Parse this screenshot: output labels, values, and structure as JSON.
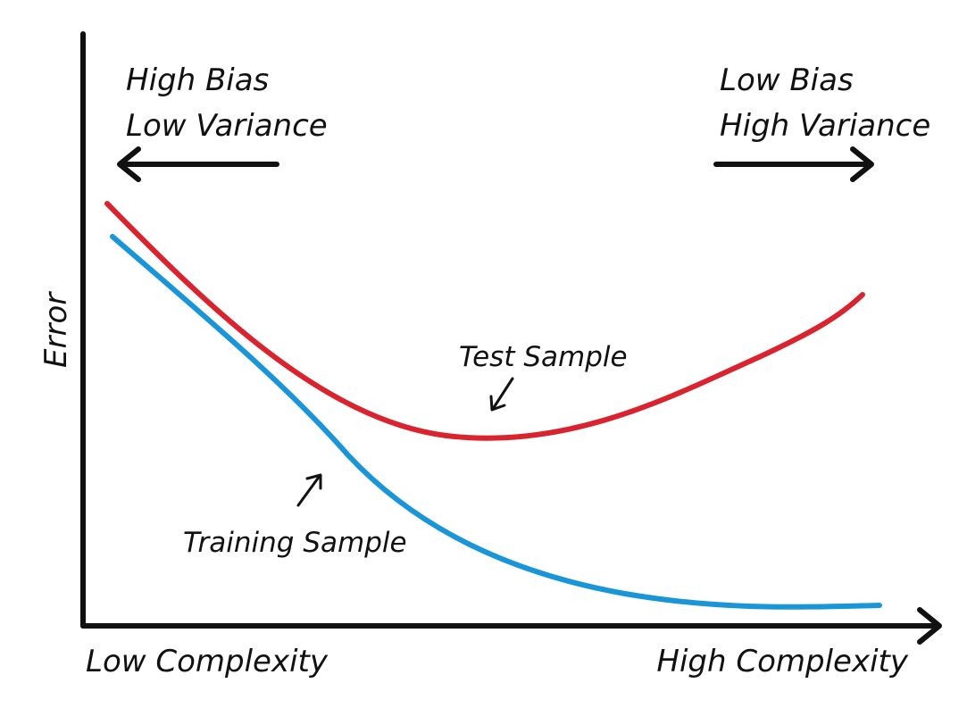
{
  "axes": {
    "y_label": "Error",
    "x_label_left": "Low Complexity",
    "x_label_right": "High Complexity"
  },
  "regions": {
    "left": {
      "line1": "High Bias",
      "line2": "Low Variance"
    },
    "right": {
      "line1": "Low Bias",
      "line2": "High Variance"
    }
  },
  "curves": {
    "test": {
      "label": "Test Sample",
      "color": "#d9232e"
    },
    "training": {
      "label": "Training Sample",
      "color": "#1a96d8"
    }
  },
  "colors": {
    "axis": "#111111",
    "text": "#111111"
  }
}
